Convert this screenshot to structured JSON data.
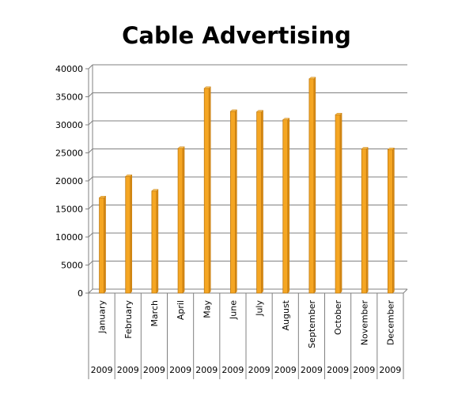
{
  "chart_data": {
    "type": "bar",
    "title": "Cable Advertising",
    "categories": [
      "January",
      "February",
      "March",
      "April",
      "May",
      "June",
      "July",
      "August",
      "September",
      "October",
      "November",
      "December"
    ],
    "category_group": "2009",
    "values": [
      17000,
      20800,
      18200,
      25800,
      36500,
      32400,
      32300,
      30900,
      38200,
      31800,
      25700,
      25600
    ],
    "ylim": [
      0,
      40000
    ],
    "yticks": [
      0,
      5000,
      10000,
      15000,
      20000,
      25000,
      30000,
      35000,
      40000
    ],
    "xlabel": "",
    "ylabel": "",
    "grid": true,
    "bar_color": "#F5A623",
    "bar_edge_color": "#C07A10"
  }
}
